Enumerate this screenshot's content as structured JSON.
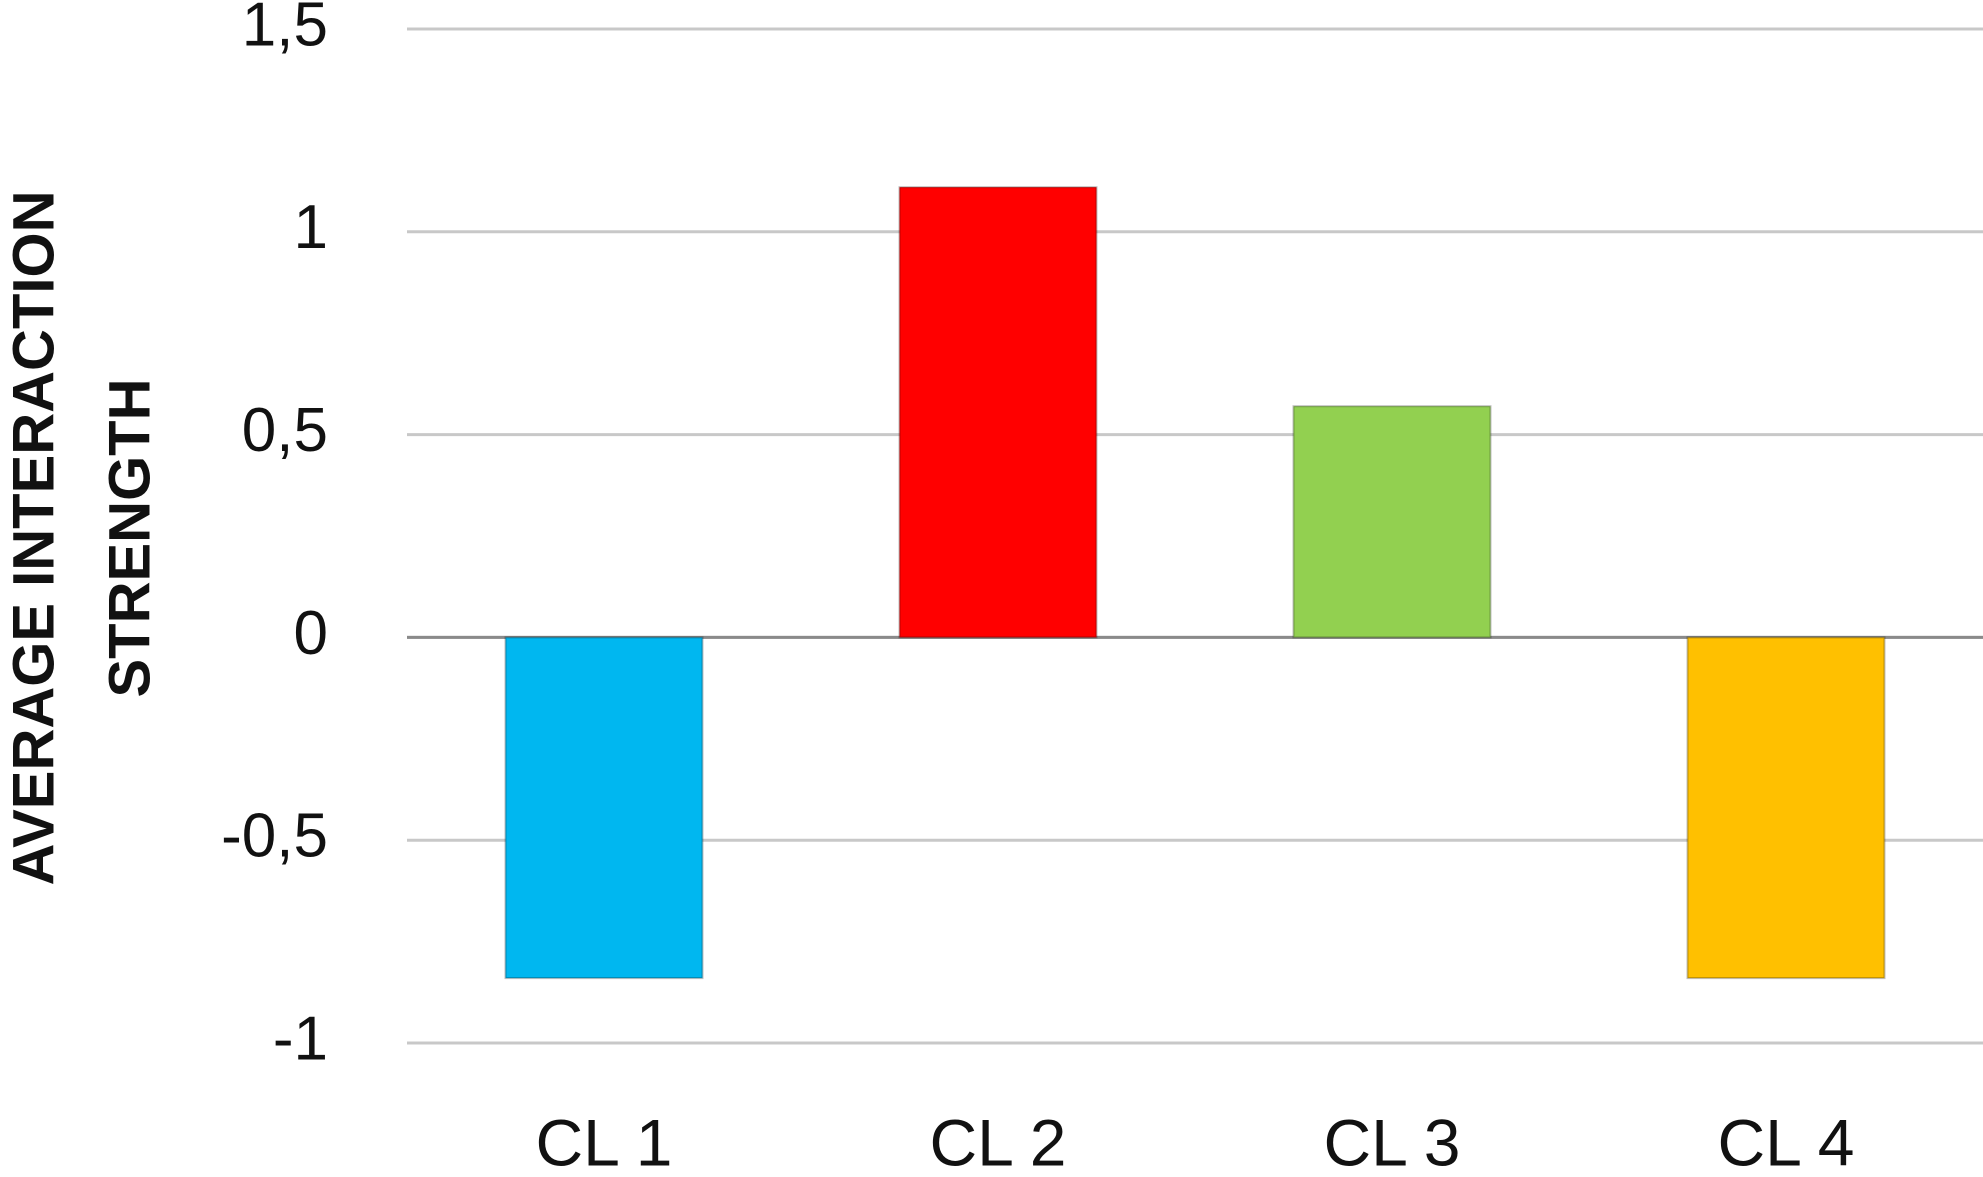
{
  "chart_data": {
    "type": "bar",
    "y_label": [
      "AVERAGE INTERACTION",
      "STRENGTH"
    ],
    "categories": [
      "CL 1",
      "CL 2",
      "CL 3",
      "CL 4"
    ],
    "values": [
      -0.84,
      1.11,
      0.57,
      -0.84
    ],
    "colors": [
      "#00b7f0",
      "#ff0000",
      "#92d050",
      "#ffc000"
    ],
    "ylim": [
      -1,
      1.5
    ],
    "yticks": [
      -1,
      {
        "value": -0.5,
        "label": "-0,5"
      },
      0,
      {
        "value": 0.5,
        "label": "0,5"
      },
      1,
      {
        "value": 1.5,
        "label": "1,5"
      }
    ],
    "grid": true
  }
}
